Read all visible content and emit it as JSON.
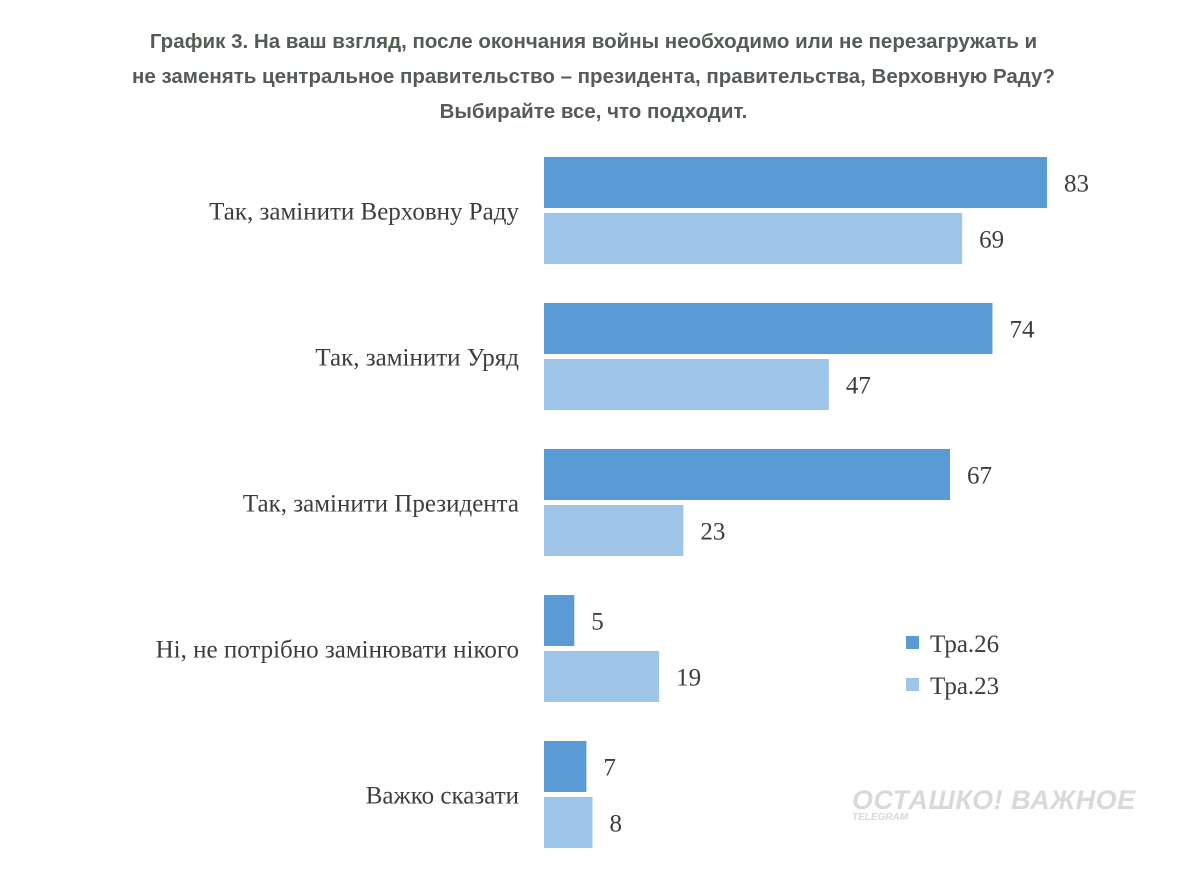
{
  "title_lines": [
    "График 3. На ваш взгляд, после окончания войны необходимо или не перезагружать и",
    "не заменять центральное правительство – президента, правительства, Верховную Раду?",
    "Выбирайте все, что подходит."
  ],
  "chart_data": {
    "type": "bar",
    "orientation": "horizontal",
    "title": "График 3. На ваш взгляд, после окончания войны необходимо или не перезагружать и не заменять центральное правительство – президента, правительства, Верховную Раду? Выбирайте все, что подходит.",
    "categories": [
      "Так, замінити Верховну Раду",
      "Так, замінити Уряд",
      "Так, замінити Президента",
      "Ні, не потрібно замінювати нікого",
      "Важко сказати"
    ],
    "series": [
      {
        "name": "Тра.26",
        "color": "#5b9bd5",
        "values": [
          83,
          74,
          67,
          5,
          7
        ]
      },
      {
        "name": "Тра.23",
        "color": "#9fc5e8",
        "values": [
          69,
          47,
          23,
          19,
          8
        ]
      }
    ],
    "xlim": [
      0,
      100
    ],
    "grid": false,
    "data_labels": true,
    "legend_position": "right"
  },
  "watermark": {
    "main": "ОСТАШКО! ВАЖНОЕ",
    "sub": "TELEGRAM"
  }
}
